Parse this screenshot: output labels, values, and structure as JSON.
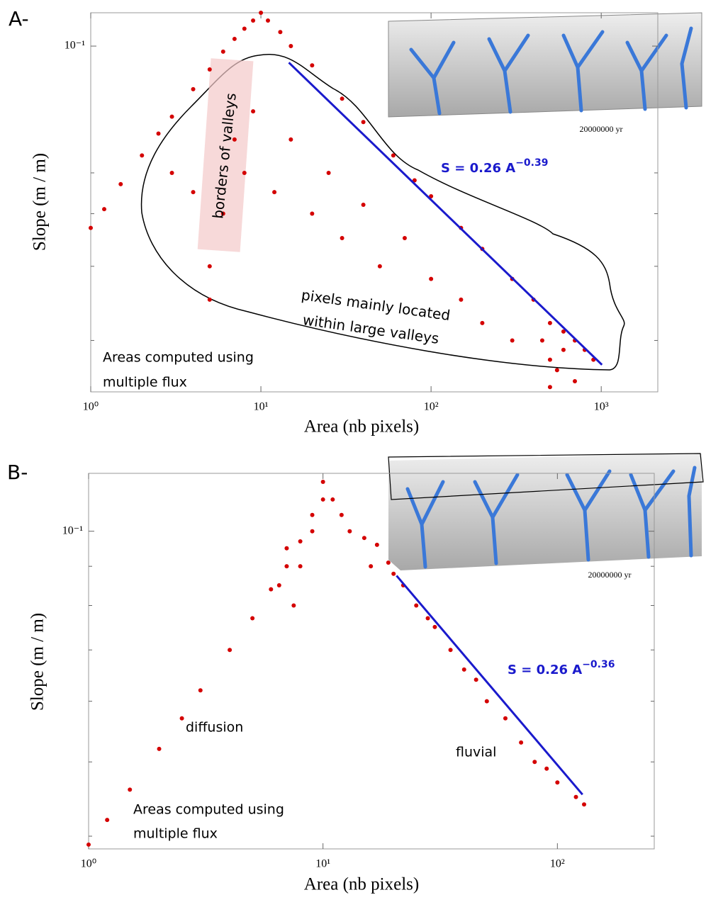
{
  "chart_data": [
    {
      "type": "scatter",
      "panel_label": "A-",
      "xlabel": "Area (nb pixels)",
      "ylabel": "Slope (m / m)",
      "log_x": true,
      "log_y": true,
      "xlim": [
        1,
        2150
      ],
      "ylim": [
        0.0151,
        0.12
      ],
      "xticks": [
        {
          "value": 1,
          "label": "10⁰"
        },
        {
          "value": 10,
          "label": "10¹"
        },
        {
          "value": 100,
          "label": "10²"
        },
        {
          "value": 1000,
          "label": "10³"
        }
      ],
      "yticks": [
        {
          "value": 0.1,
          "label": "10⁻¹"
        }
      ],
      "yminor": [
        0.05,
        0.04,
        0.03,
        0.02
      ],
      "color": "#d40000",
      "x": [
        1,
        1.2,
        1.5,
        2,
        2.5,
        3,
        4,
        5,
        6,
        7,
        8,
        9,
        10,
        11,
        13,
        15,
        20,
        30,
        40,
        60,
        80,
        100,
        150,
        200,
        300,
        400,
        500,
        600,
        700,
        800,
        3,
        4,
        5,
        5,
        6,
        7,
        8,
        9,
        12,
        15,
        20,
        25,
        30,
        40,
        50,
        70,
        100,
        150,
        200,
        300,
        500,
        550,
        600,
        450,
        700,
        900,
        500
      ],
      "y": [
        0.037,
        0.041,
        0.047,
        0.055,
        0.062,
        0.068,
        0.079,
        0.088,
        0.097,
        0.104,
        0.11,
        0.115,
        0.12,
        0.115,
        0.108,
        0.1,
        0.09,
        0.075,
        0.066,
        0.055,
        0.048,
        0.044,
        0.037,
        0.033,
        0.028,
        0.025,
        0.022,
        0.021,
        0.02,
        0.019,
        0.05,
        0.045,
        0.03,
        0.025,
        0.04,
        0.06,
        0.05,
        0.07,
        0.045,
        0.06,
        0.04,
        0.05,
        0.035,
        0.042,
        0.03,
        0.035,
        0.028,
        0.025,
        0.022,
        0.02,
        0.018,
        0.017,
        0.019,
        0.02,
        0.016,
        0.018,
        0.0155
      ],
      "fit": {
        "coef": 0.26,
        "exponent": -0.39,
        "xrange": [
          14.6,
          1010
        ],
        "color": "#1a1acc",
        "label": "S = 0.26 A",
        "label_exp": "−0.39"
      },
      "annotations": [
        "borders of valleys",
        "pixels mainly located",
        "within large valleys",
        "Areas computed using",
        "multiple flux"
      ],
      "inset_caption": "20000000 yr"
    },
    {
      "type": "scatter",
      "panel_label": "B-",
      "xlabel": "Area (nb pixels)",
      "ylabel": "Slope (m / m)",
      "log_x": true,
      "log_y": true,
      "xlim": [
        1,
        259
      ],
      "ylim": [
        0.0385,
        0.119
      ],
      "xticks": [
        {
          "value": 1,
          "label": "10⁰"
        },
        {
          "value": 10,
          "label": "10¹"
        },
        {
          "value": 100,
          "label": "10²"
        }
      ],
      "yticks": [
        {
          "value": 0.1,
          "label": "10⁻¹"
        }
      ],
      "yminor": [
        0.09,
        0.08,
        0.07,
        0.06,
        0.05,
        0.04
      ],
      "color": "#d40000",
      "x": [
        1,
        1.2,
        1.5,
        2,
        2.5,
        3,
        4,
        5,
        6,
        7,
        8,
        9,
        10,
        7,
        8,
        9,
        10,
        11,
        12,
        13,
        15,
        16,
        17,
        19,
        20,
        22,
        25,
        28,
        30,
        35,
        40,
        45,
        50,
        60,
        70,
        80,
        90,
        100,
        120,
        130,
        6.5,
        7.5
      ],
      "y": [
        0.039,
        0.042,
        0.046,
        0.052,
        0.057,
        0.062,
        0.07,
        0.077,
        0.084,
        0.09,
        0.097,
        0.105,
        0.116,
        0.095,
        0.09,
        0.1,
        0.11,
        0.11,
        0.105,
        0.1,
        0.098,
        0.09,
        0.096,
        0.091,
        0.088,
        0.085,
        0.08,
        0.077,
        0.075,
        0.07,
        0.066,
        0.064,
        0.06,
        0.057,
        0.053,
        0.05,
        0.049,
        0.047,
        0.045,
        0.044,
        0.085,
        0.08
      ],
      "fit": {
        "coef": 0.26,
        "exponent": -0.36,
        "xrange": [
          20.6,
          128
        ],
        "color": "#1a1acc",
        "label": "S = 0.26 A",
        "label_exp": "−0.36"
      },
      "annotations": [
        "diffusion",
        "fluvial",
        "Areas computed using",
        "multiple flux"
      ],
      "inset_caption": "20000000 yr"
    }
  ]
}
